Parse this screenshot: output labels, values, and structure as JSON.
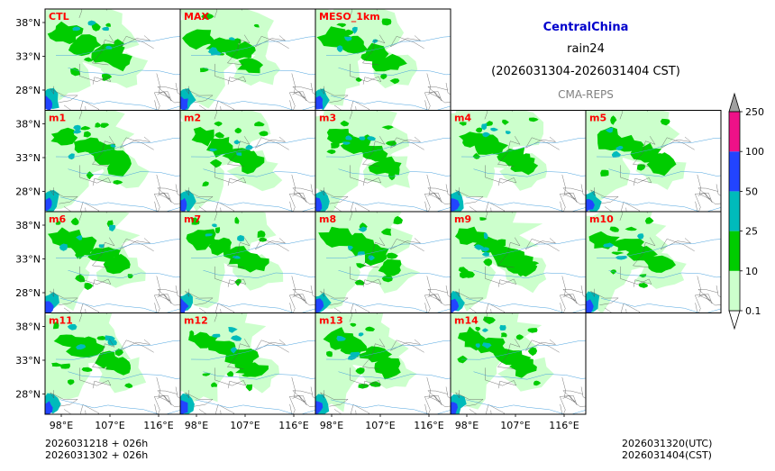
{
  "chart_data": {
    "type": "heatmap",
    "title": "CentralChina",
    "subtitle": "rain24",
    "period": "(2026031304-2026031404 CST)",
    "source": "CMA-REPS",
    "colors": {
      "title": "#0000cc",
      "panel_label": "#ff0000",
      "source": "#808080"
    },
    "panels": [
      {
        "label": "CTL",
        "row": 0,
        "col": 0
      },
      {
        "label": "MAX",
        "row": 0,
        "col": 1
      },
      {
        "label": "MESO_1km",
        "row": 0,
        "col": 2
      },
      {
        "label": "m1",
        "row": 1,
        "col": 0
      },
      {
        "label": "m2",
        "row": 1,
        "col": 1
      },
      {
        "label": "m3",
        "row": 1,
        "col": 2
      },
      {
        "label": "m4",
        "row": 1,
        "col": 3
      },
      {
        "label": "m5",
        "row": 1,
        "col": 4
      },
      {
        "label": "m6",
        "row": 2,
        "col": 0
      },
      {
        "label": "m7",
        "row": 2,
        "col": 1
      },
      {
        "label": "m8",
        "row": 2,
        "col": 2
      },
      {
        "label": "m9",
        "row": 2,
        "col": 3
      },
      {
        "label": "m10",
        "row": 2,
        "col": 4
      },
      {
        "label": "m11",
        "row": 3,
        "col": 0
      },
      {
        "label": "m12",
        "row": 3,
        "col": 1
      },
      {
        "label": "m13",
        "row": 3,
        "col": 2
      },
      {
        "label": "m14",
        "row": 3,
        "col": 3
      }
    ],
    "y_ticks": [
      "38°N",
      "33°N",
      "28°N"
    ],
    "y_tick_values": [
      38,
      33,
      28
    ],
    "x_ticks": [
      "98°E",
      "107°E",
      "116°E"
    ],
    "x_tick_values": [
      98,
      107,
      116
    ],
    "lon_range": [
      95,
      120
    ],
    "lat_range": [
      25,
      40
    ],
    "colorbar": {
      "levels": [
        "0.1",
        "10",
        "25",
        "50",
        "100",
        "250"
      ],
      "colors": [
        "#ccffcc",
        "#00cc00",
        "#00bbbb",
        "#2244ff",
        "#ee1188"
      ],
      "under_color": "#ffffff",
      "over_color": "#a0a0a0"
    }
  },
  "footer": {
    "init_utc": "2026031218  +  026h",
    "init_cst": "2026031302  +  026h",
    "valid_utc": "2026031320(UTC)",
    "valid_cst": "2026031404(CST)"
  }
}
